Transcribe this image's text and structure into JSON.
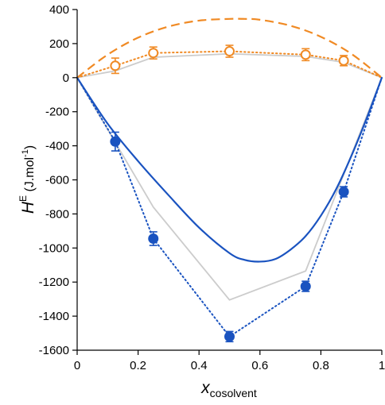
{
  "chart_data": {
    "type": "scatter",
    "title": "",
    "xlabel": {
      "main": "x",
      "sub": "cosolvent"
    },
    "ylabel": {
      "main": "H",
      "sup": "E",
      "unit_open": " (J.mol",
      "unit_sup": "-1",
      "unit_close": ")"
    },
    "xlim": [
      0,
      1
    ],
    "ylim": [
      -1600,
      400
    ],
    "xticks": [
      0,
      0.2,
      0.4,
      0.6,
      0.8,
      1
    ],
    "xtick_labels": [
      "0",
      "0.2",
      "0.4",
      "0.6",
      "0.8",
      "1"
    ],
    "yticks": [
      400,
      200,
      0,
      -200,
      -400,
      -600,
      -800,
      -1000,
      -1200,
      -1400,
      -1600
    ],
    "ytick_labels": [
      "400",
      "200",
      "0",
      "-200",
      "-400",
      "-600",
      "-800",
      "-1000",
      "-1200",
      "-1400",
      "-1600"
    ],
    "grid": false,
    "legend": "none",
    "colors": {
      "orange": "#f08a24",
      "blue": "#1a53c0",
      "gray": "#cccccc"
    },
    "series": [
      {
        "style": "orange-open-circles-with-errorbars",
        "x": [
          0,
          0.125,
          0.25,
          0.5,
          0.75,
          0.875,
          1
        ],
        "y": [
          0,
          70,
          145,
          155,
          135,
          100,
          0
        ],
        "err": [
          0,
          45,
          35,
          35,
          35,
          30,
          0
        ]
      },
      {
        "style": "blue-filled-circles-with-errorbars",
        "x": [
          0,
          0.125,
          0.25,
          0.5,
          0.75,
          0.875,
          1
        ],
        "y": [
          0,
          -375,
          -945,
          -1520,
          -1225,
          -670,
          0
        ],
        "err": [
          0,
          55,
          40,
          30,
          30,
          30,
          0
        ]
      },
      {
        "style": "orange-dashed-curve",
        "x": [
          0,
          0.1,
          0.2,
          0.3,
          0.4,
          0.5,
          0.55,
          0.6,
          0.7,
          0.8,
          0.9,
          1
        ],
        "y": [
          0,
          135,
          235,
          300,
          335,
          345,
          345,
          340,
          305,
          240,
          140,
          0
        ]
      },
      {
        "style": "gray-solid-line-upper",
        "x": [
          0,
          0.125,
          0.25,
          0.5,
          0.75,
          0.875,
          1
        ],
        "y": [
          0,
          40,
          120,
          140,
          125,
          90,
          0
        ]
      },
      {
        "style": "gray-solid-line-lower",
        "x": [
          0,
          0.25,
          0.5,
          0.75,
          1
        ],
        "y": [
          0,
          -760,
          -1305,
          -1135,
          0
        ]
      },
      {
        "style": "blue-solid-curve",
        "x": [
          0,
          0.1,
          0.2,
          0.3,
          0.4,
          0.5,
          0.55,
          0.6,
          0.65,
          0.7,
          0.75,
          0.8,
          0.85,
          0.9,
          0.95,
          1
        ],
        "y": [
          0,
          -270,
          -490,
          -690,
          -880,
          -1030,
          -1070,
          -1080,
          -1065,
          -1010,
          -930,
          -810,
          -655,
          -460,
          -240,
          0
        ]
      }
    ]
  }
}
